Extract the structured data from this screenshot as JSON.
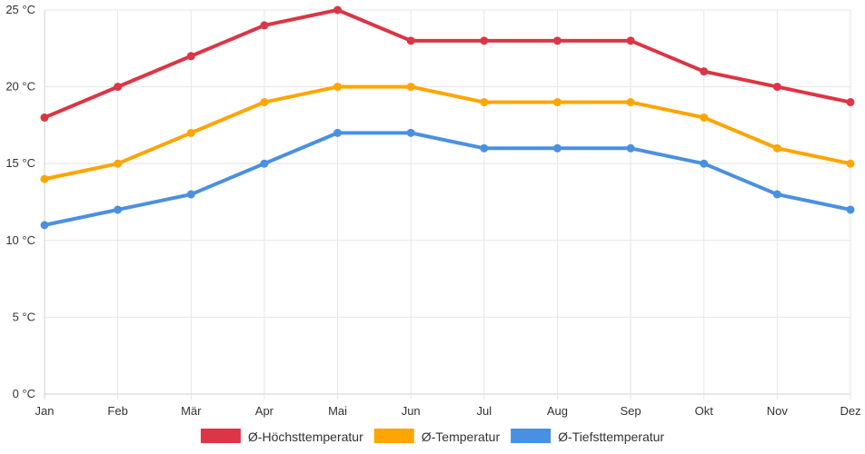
{
  "chart_data": {
    "type": "line",
    "categories": [
      "Jan",
      "Feb",
      "Mär",
      "Apr",
      "Mai",
      "Jun",
      "Jul",
      "Aug",
      "Sep",
      "Okt",
      "Nov",
      "Dez"
    ],
    "series": [
      {
        "name": "Ø-Höchsttemperatur",
        "color": "#dc3545",
        "values": [
          18,
          20,
          22,
          24,
          25,
          23,
          23,
          23,
          23,
          21,
          20,
          19
        ]
      },
      {
        "name": "Ø-Temperatur",
        "color": "#ffa500",
        "values": [
          14,
          15,
          17,
          19,
          20,
          20,
          19,
          19,
          19,
          18,
          16,
          15
        ]
      },
      {
        "name": "Ø-Tiefsttemperatur",
        "color": "#4a90e2",
        "values": [
          11,
          12,
          13,
          15,
          17,
          17,
          16,
          16,
          16,
          15,
          13,
          12
        ]
      }
    ],
    "y_ticks": [
      {
        "value": 0,
        "label": "0 °C"
      },
      {
        "value": 5,
        "label": "5 °C"
      },
      {
        "value": 10,
        "label": "10 °C"
      },
      {
        "value": 15,
        "label": "15 °C"
      },
      {
        "value": 20,
        "label": "20 °C"
      },
      {
        "value": 25,
        "label": "25 °C"
      }
    ],
    "ylim": [
      0,
      25
    ],
    "grid": true,
    "legend_position": "bottom-center",
    "title": "",
    "xlabel": "",
    "ylabel": ""
  }
}
